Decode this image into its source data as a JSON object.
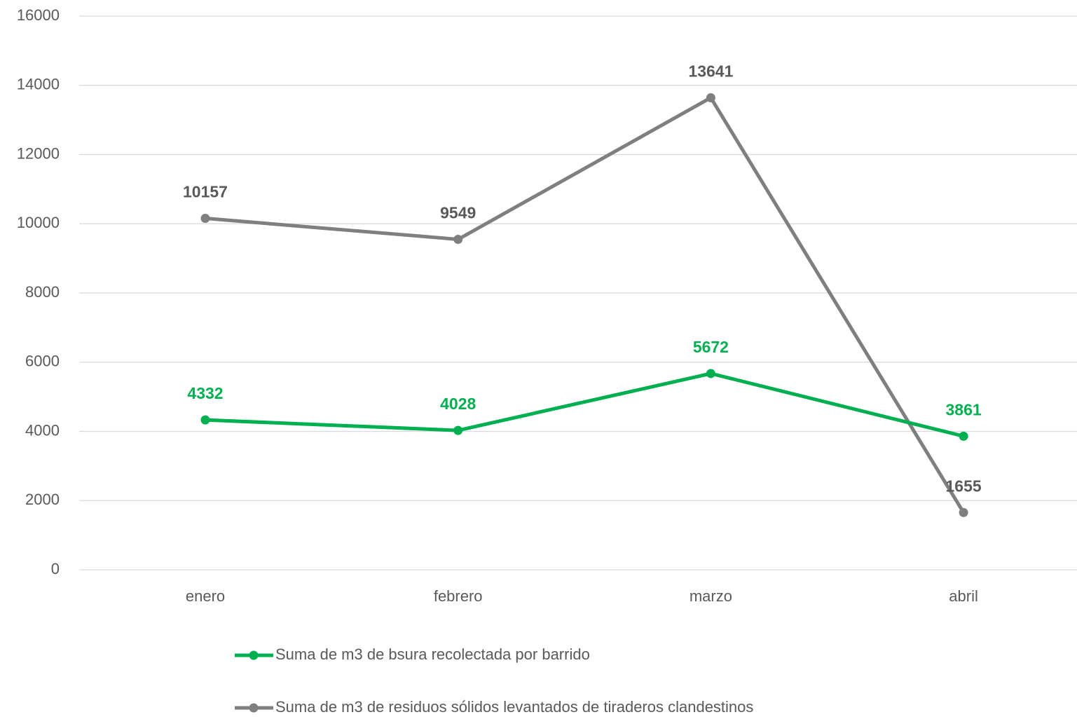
{
  "chart_data": {
    "type": "line",
    "categories": [
      "enero",
      "febrero",
      "marzo",
      "abril"
    ],
    "series": [
      {
        "name": "Suma de m3 de bsura recolectada por barrido",
        "color": "#00b050",
        "values": [
          4332,
          4028,
          5672,
          3861
        ]
      },
      {
        "name": "Suma de m3 de residuos sólidos levantados de tiraderos clandestinos",
        "color": "#7f7f7f",
        "values": [
          10157,
          9549,
          13641,
          1655
        ]
      }
    ],
    "ylim": [
      0,
      16000
    ],
    "yticks": [
      0,
      2000,
      4000,
      6000,
      8000,
      10000,
      12000,
      14000,
      16000
    ],
    "grid": true,
    "legend": "bottom"
  }
}
